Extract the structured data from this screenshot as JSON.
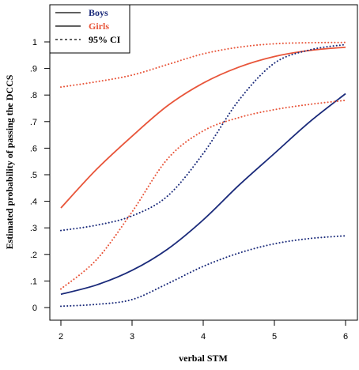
{
  "chart_data": {
    "type": "line",
    "xlabel": "verbal STM",
    "ylabel": "Estimated probability of passing the DCCS",
    "xlim": [
      2,
      6
    ],
    "ylim": [
      0,
      1
    ],
    "x_ticks": [
      "2",
      "3",
      "4",
      "5",
      "6"
    ],
    "y_ticks": [
      "0",
      ".1",
      ".2",
      ".3",
      ".4",
      ".5",
      ".6",
      ".7",
      ".8",
      ".9",
      "1"
    ],
    "grid": false,
    "legend_position": "top-left",
    "legend": [
      {
        "label": "Boys",
        "color": "#1a2a7a",
        "style": "solid",
        "text_color": "#1a2a7a"
      },
      {
        "label": "Girls",
        "color": "#e8553a",
        "style": "solid",
        "text_color": "#e8553a"
      },
      {
        "label": "95% CI",
        "color": "#000000",
        "style": "dotted",
        "text_color": "#000000"
      }
    ],
    "x": [
      2,
      2.5,
      3,
      3.5,
      4,
      4.5,
      5,
      5.5,
      6
    ],
    "series": [
      {
        "name": "Boys",
        "color": "#1a2a7a",
        "style": "solid",
        "values": [
          0.05,
          0.085,
          0.14,
          0.22,
          0.33,
          0.46,
          0.58,
          0.7,
          0.805
        ]
      },
      {
        "name": "Girls",
        "color": "#e8553a",
        "style": "solid",
        "values": [
          0.375,
          0.52,
          0.645,
          0.76,
          0.845,
          0.905,
          0.945,
          0.968,
          0.98
        ]
      },
      {
        "color": "#1a2a7a",
        "style": "dotted",
        "values": [
          0.005,
          0.012,
          0.03,
          0.09,
          0.155,
          0.205,
          0.24,
          0.26,
          0.27
        ]
      },
      {
        "color": "#1a2a7a",
        "style": "dotted",
        "values": [
          0.29,
          0.31,
          0.345,
          0.42,
          0.58,
          0.78,
          0.92,
          0.97,
          0.99
        ]
      },
      {
        "color": "#e8553a",
        "style": "dotted",
        "values": [
          0.07,
          0.18,
          0.36,
          0.56,
          0.665,
          0.715,
          0.745,
          0.765,
          0.78
        ]
      },
      {
        "color": "#e8553a",
        "style": "dotted",
        "values": [
          0.83,
          0.85,
          0.875,
          0.915,
          0.955,
          0.98,
          0.993,
          0.997,
          0.998
        ]
      }
    ]
  }
}
